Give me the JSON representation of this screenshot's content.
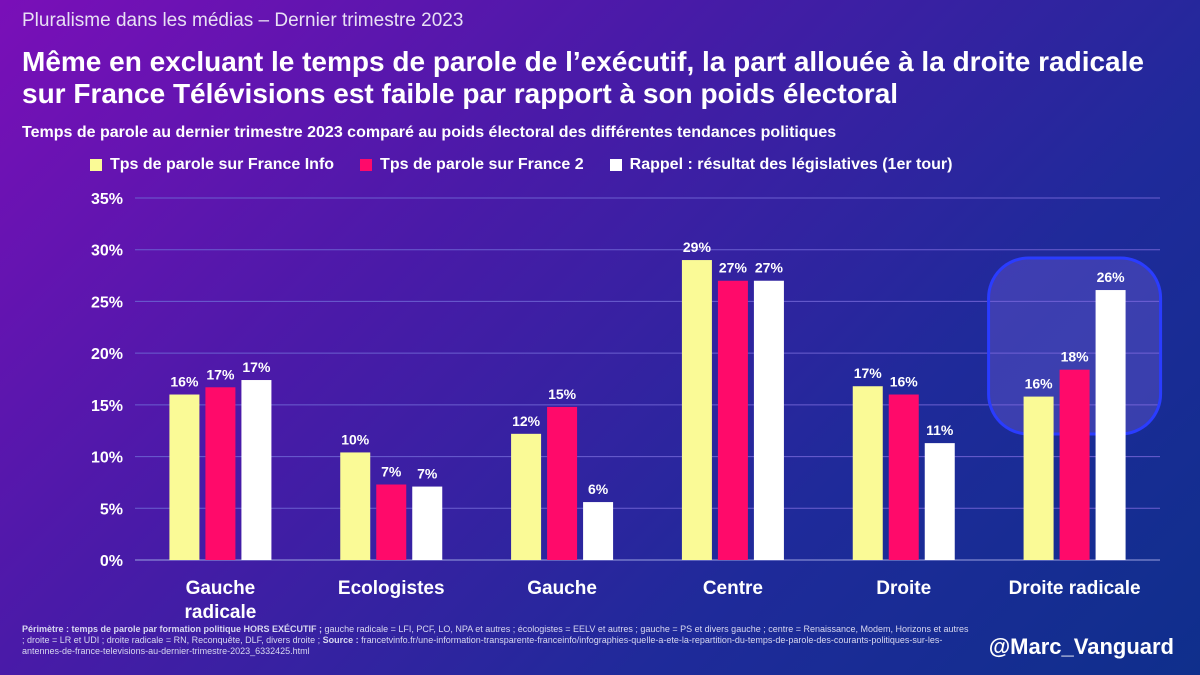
{
  "header": {
    "supertitle": "Pluralisme dans les médias – Dernier trimestre 2023",
    "title": "Même en excluant le temps de parole de l’exécutif, la part allouée à la droite radicale sur France Télévisions est faible par rapport à son poids électoral",
    "subtitle": "Temps de parole au dernier trimestre 2023 comparé au poids électoral des différentes tendances politiques"
  },
  "chart_data": {
    "type": "bar",
    "categories": [
      "Gauche radicale",
      "Ecologistes",
      "Gauche",
      "Centre",
      "Droite",
      "Droite radicale"
    ],
    "series": [
      {
        "name": "Tps de parole sur France Info",
        "color": "#fafa96",
        "values": [
          16,
          10.4,
          12.2,
          29,
          16.8,
          15.8
        ],
        "labels": [
          "16%",
          "10%",
          "12%",
          "29%",
          "17%",
          "16%"
        ]
      },
      {
        "name": "Tps de parole sur France 2",
        "color": "#ff0a6a",
        "values": [
          16.7,
          7.3,
          14.8,
          27,
          16,
          18.4
        ],
        "labels": [
          "17%",
          "7%",
          "15%",
          "27%",
          "16%",
          "18%"
        ]
      },
      {
        "name": "Rappel : résultat des législatives (1er tour)",
        "color": "#ffffff",
        "values": [
          17.4,
          7.1,
          5.6,
          27,
          11.3,
          26.1
        ],
        "labels": [
          "17%",
          "7%",
          "6%",
          "27%",
          "11%",
          "26%"
        ]
      }
    ],
    "ylim": [
      0,
      35
    ],
    "yticks": [
      "0%",
      "5%",
      "10%",
      "15%",
      "20%",
      "25%",
      "30%",
      "35%"
    ],
    "highlighted_category": "Droite radicale",
    "grid": true
  },
  "footnote": {
    "bold1": "Périmètre : temps de parole par formation politique HORS EXÉCUTIF ;",
    "text1": " gauche radicale = LFI, PCF, LO, NPA et autres ; écologistes = EELV et autres ; gauche = PS et divers gauche ; centre = Renaissance, Modem, Horizons et autres ; droite = LR et UDI ; droite radicale = RN, Reconquête, DLF, divers droite ; ",
    "bold2": "Source :",
    "text2": " francetvinfo.fr/une-information-transparente-franceinfo/infographies-quelle-a-ete-la-repartition-du-temps-de-parole-des-courants-politiques-sur-les-antennes-de-france-televisions-au-dernier-trimestre-2023_6332425.html"
  },
  "handle": "@Marc_Vanguard"
}
